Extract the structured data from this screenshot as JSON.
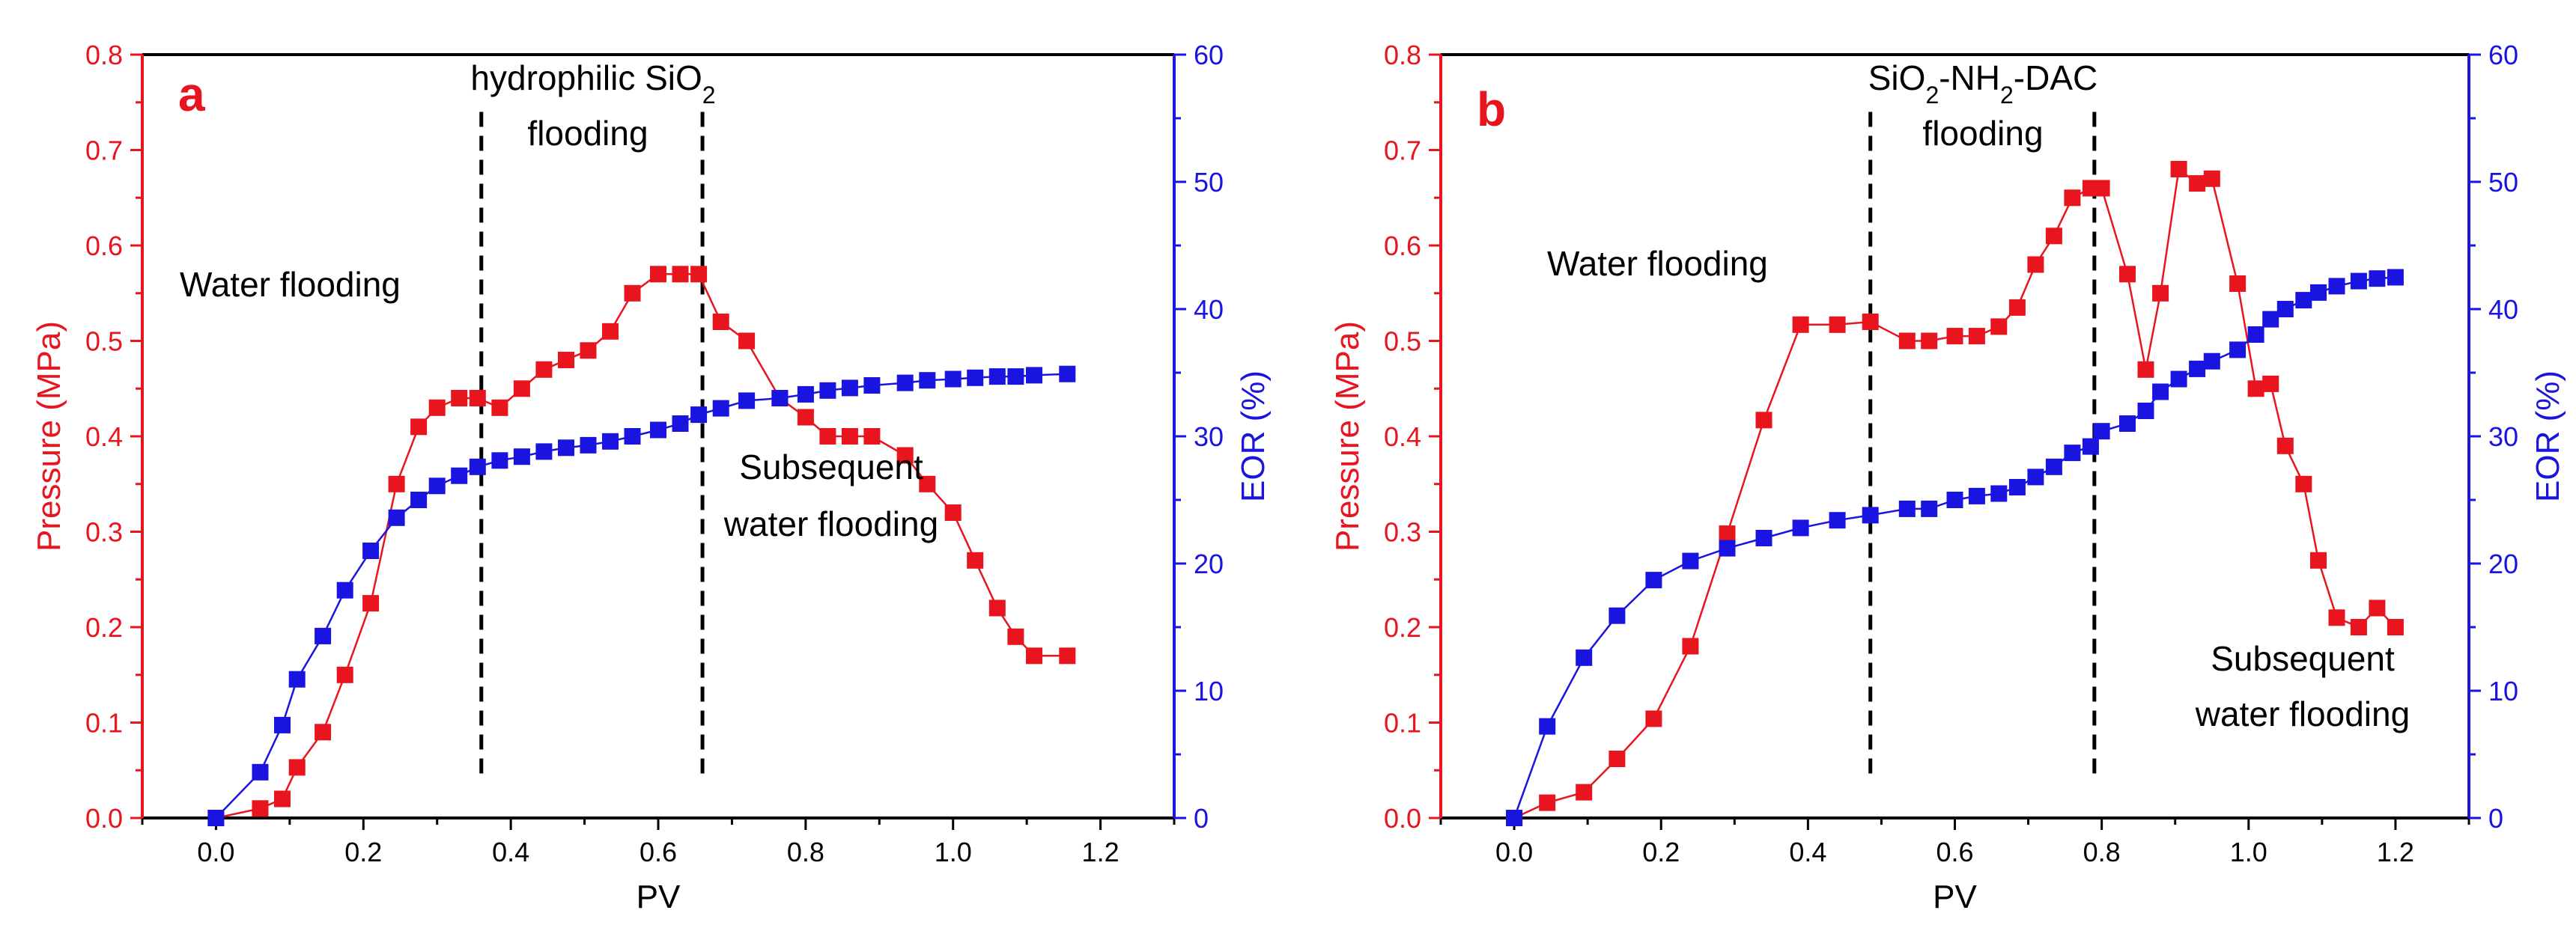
{
  "colors": {
    "pressure": "#e8141e",
    "eor": "#1a14e0",
    "axis": "#000000"
  },
  "chart_data": [
    {
      "type": "line",
      "panel_label": "a",
      "xlabel": "PV",
      "ylabel_left": "Pressure (MPa)",
      "ylabel_right": "EOR (%)",
      "xlim": [
        -0.1,
        1.3
      ],
      "ylim_left": [
        0,
        0.8
      ],
      "ylim_right": [
        0,
        60
      ],
      "x_ticks": [
        "0.0",
        "0.2",
        "0.4",
        "0.6",
        "0.8",
        "1.0",
        "1.2"
      ],
      "y_left_ticks": [
        "0.0",
        "0.1",
        "0.2",
        "0.3",
        "0.4",
        "0.5",
        "0.6",
        "0.7",
        "0.8"
      ],
      "y_right_ticks": [
        "0",
        "10",
        "20",
        "30",
        "40",
        "50",
        "60"
      ],
      "dashed_lines_x": [
        0.36,
        0.66
      ],
      "annotations": {
        "stage1": "Water flooding",
        "stage2_line1": "hydrophilic SiO",
        "stage2_sub": "2",
        "stage2_line2": "flooding",
        "stage3_line1": "Subsequent",
        "stage3_line2": "water flooding"
      },
      "series": [
        {
          "name": "Pressure",
          "axis": "left",
          "x": [
            0.0,
            0.06,
            0.09,
            0.11,
            0.145,
            0.175,
            0.21,
            0.245,
            0.275,
            0.3,
            0.33,
            0.355,
            0.385,
            0.415,
            0.445,
            0.475,
            0.505,
            0.535,
            0.565,
            0.6,
            0.63,
            0.655,
            0.685,
            0.72,
            0.765,
            0.8,
            0.83,
            0.86,
            0.89,
            0.935,
            0.965,
            1.0,
            1.03,
            1.06,
            1.085,
            1.11,
            1.155
          ],
          "y": [
            0.0,
            0.01,
            0.02,
            0.053,
            0.09,
            0.15,
            0.225,
            0.35,
            0.41,
            0.43,
            0.44,
            0.44,
            0.43,
            0.45,
            0.47,
            0.48,
            0.49,
            0.51,
            0.55,
            0.57,
            0.57,
            0.57,
            0.52,
            0.5,
            0.44,
            0.42,
            0.4,
            0.4,
            0.4,
            0.38,
            0.35,
            0.32,
            0.27,
            0.22,
            0.19,
            0.17,
            0.17
          ]
        },
        {
          "name": "EOR",
          "axis": "right",
          "x": [
            0.0,
            0.06,
            0.09,
            0.11,
            0.145,
            0.175,
            0.21,
            0.245,
            0.275,
            0.3,
            0.33,
            0.355,
            0.385,
            0.415,
            0.445,
            0.475,
            0.505,
            0.535,
            0.565,
            0.6,
            0.63,
            0.655,
            0.685,
            0.72,
            0.765,
            0.8,
            0.83,
            0.86,
            0.89,
            0.935,
            0.965,
            1.0,
            1.03,
            1.06,
            1.085,
            1.11,
            1.155
          ],
          "y": [
            0.0,
            3.6,
            7.3,
            10.9,
            14.3,
            17.9,
            21.0,
            23.6,
            25.0,
            26.1,
            26.9,
            27.6,
            28.1,
            28.4,
            28.8,
            29.1,
            29.3,
            29.6,
            30.0,
            30.5,
            31.0,
            31.7,
            32.2,
            32.8,
            33.0,
            33.3,
            33.6,
            33.8,
            34.0,
            34.2,
            34.4,
            34.5,
            34.6,
            34.7,
            34.7,
            34.8,
            34.9
          ]
        }
      ]
    },
    {
      "type": "line",
      "panel_label": "b",
      "xlabel": "PV",
      "ylabel_left": "Pressure (MPa)",
      "ylabel_right": "EOR (%)",
      "xlim": [
        -0.1,
        1.3
      ],
      "ylim_left": [
        0,
        0.8
      ],
      "ylim_right": [
        0,
        60
      ],
      "x_ticks": [
        "0.0",
        "0.2",
        "0.4",
        "0.6",
        "0.8",
        "1.0",
        "1.2"
      ],
      "y_left_ticks": [
        "0.0",
        "0.1",
        "0.2",
        "0.3",
        "0.4",
        "0.5",
        "0.6",
        "0.7",
        "0.8"
      ],
      "y_right_ticks": [
        "0",
        "10",
        "20",
        "30",
        "40",
        "50",
        "60"
      ],
      "dashed_lines_x": [
        0.485,
        0.79
      ],
      "annotations": {
        "stage2_line1": "SiO",
        "stage2_sub": "2",
        "stage2_suffix": "-NH",
        "stage2_sub2": "2",
        "stage2_suffix2": "-DAC",
        "stage2_line2": "flooding",
        "stage1": "Water flooding",
        "stage3_line1": "Subsequent",
        "stage3_line2": "water flooding"
      },
      "series": [
        {
          "name": "Pressure",
          "axis": "left",
          "x": [
            0.0,
            0.045,
            0.095,
            0.14,
            0.19,
            0.24,
            0.29,
            0.34,
            0.39,
            0.44,
            0.485,
            0.535,
            0.565,
            0.6,
            0.63,
            0.66,
            0.685,
            0.71,
            0.735,
            0.76,
            0.785,
            0.8,
            0.835,
            0.86,
            0.88,
            0.905,
            0.93,
            0.95,
            0.985,
            1.01,
            1.03,
            1.05,
            1.075,
            1.095,
            1.12,
            1.15,
            1.175,
            1.2
          ],
          "y": [
            0.0,
            0.016,
            0.027,
            0.062,
            0.104,
            0.18,
            0.298,
            0.417,
            0.517,
            0.517,
            0.52,
            0.5,
            0.5,
            0.505,
            0.505,
            0.515,
            0.535,
            0.58,
            0.61,
            0.65,
            0.66,
            0.66,
            0.57,
            0.47,
            0.55,
            0.68,
            0.665,
            0.67,
            0.56,
            0.45,
            0.455,
            0.39,
            0.35,
            0.27,
            0.21,
            0.2,
            0.22,
            0.2
          ]
        },
        {
          "name": "EOR",
          "axis": "right",
          "x": [
            0.0,
            0.045,
            0.095,
            0.14,
            0.19,
            0.24,
            0.29,
            0.34,
            0.39,
            0.44,
            0.485,
            0.535,
            0.565,
            0.6,
            0.63,
            0.66,
            0.685,
            0.71,
            0.735,
            0.76,
            0.785,
            0.8,
            0.835,
            0.86,
            0.88,
            0.905,
            0.93,
            0.95,
            0.985,
            1.01,
            1.03,
            1.05,
            1.075,
            1.095,
            1.12,
            1.15,
            1.175,
            1.2
          ],
          "y": [
            0.0,
            7.2,
            12.6,
            15.9,
            18.7,
            20.2,
            21.2,
            22.0,
            22.8,
            23.4,
            23.8,
            24.3,
            24.3,
            25.0,
            25.3,
            25.5,
            26.0,
            26.8,
            27.6,
            28.7,
            29.2,
            30.4,
            31.0,
            32.0,
            33.5,
            34.5,
            35.3,
            35.9,
            36.8,
            38.0,
            39.2,
            40.0,
            40.7,
            41.3,
            41.8,
            42.2,
            42.4,
            42.5
          ]
        }
      ]
    }
  ]
}
